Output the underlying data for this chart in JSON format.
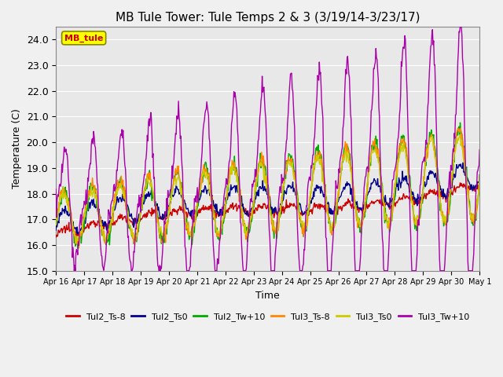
{
  "title": "MB Tule Tower: Tule Temps 2 & 3 (3/19/14-3/23/17)",
  "xlabel": "Time",
  "ylabel": "Temperature (C)",
  "ylim": [
    15.0,
    24.5
  ],
  "yticks": [
    15.0,
    16.0,
    17.0,
    18.0,
    19.0,
    20.0,
    21.0,
    22.0,
    23.0,
    24.0
  ],
  "xtick_labels": [
    "Apr 16",
    "Apr 17",
    "Apr 18",
    "Apr 19",
    "Apr 20",
    "Apr 21",
    "Apr 22",
    "Apr 23",
    "Apr 24",
    "Apr 25",
    "Apr 26",
    "Apr 27",
    "Apr 28",
    "Apr 29",
    "Apr 30",
    "May 1"
  ],
  "legend_label": "MB_tule",
  "series_labels": [
    "Tul2_Ts-8",
    "Tul2_Ts0",
    "Tul2_Tw+10",
    "Tul3_Ts-8",
    "Tul3_Ts0",
    "Tul3_Tw+10"
  ],
  "series_colors": [
    "#cc0000",
    "#00008b",
    "#00aa00",
    "#ff8800",
    "#cccc00",
    "#aa00aa"
  ],
  "line_width": 1.0,
  "background_color": "#e8e8e8",
  "plot_bg_color": "#e8e8e8",
  "grid_color": "#ffffff",
  "title_fontsize": 11,
  "axis_fontsize": 9,
  "legend_fontsize": 8,
  "n_points": 720
}
